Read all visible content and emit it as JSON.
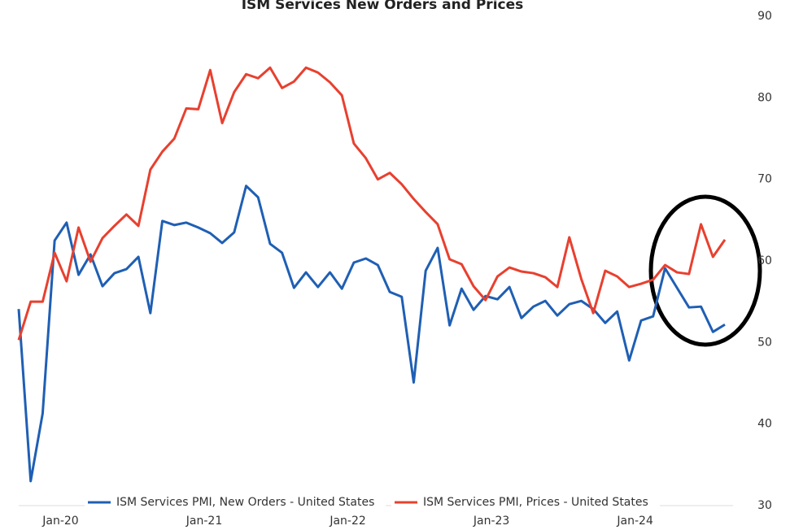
{
  "chart_data": {
    "type": "line",
    "title": "ISM Services New Orders and Prices",
    "categories": [
      null,
      null,
      null,
      "Jan-20",
      null,
      null,
      null,
      null,
      null,
      null,
      null,
      null,
      null,
      null,
      null,
      "Jan-21",
      null,
      null,
      null,
      null,
      null,
      null,
      null,
      null,
      null,
      null,
      null,
      "Jan-22",
      null,
      null,
      null,
      null,
      null,
      null,
      null,
      null,
      null,
      null,
      null,
      "Jan-23",
      null,
      null,
      null,
      null,
      null,
      null,
      null,
      null,
      null,
      null,
      null,
      "Jan-24",
      null,
      null,
      null,
      null,
      null,
      null,
      null,
      null
    ],
    "series": [
      {
        "name": "ISM Services PMI, New Orders - United States",
        "color": "#1f5fb4",
        "values": [
          54.1,
          33,
          41.3,
          62.5,
          64.7,
          58.3,
          60.8,
          56.9,
          58.5,
          59,
          60.5,
          53.6,
          64.9,
          64.4,
          64.7,
          64.1,
          63.4,
          62.2,
          63.5,
          69.2,
          67.8,
          62.1,
          61,
          56.7,
          58.6,
          56.8,
          58.6,
          56.6,
          59.8,
          60.3,
          59.5,
          56.2,
          55.6,
          45.1,
          58.8,
          61.6,
          52.1,
          56.6,
          54,
          55.7,
          55.3,
          56.8,
          53,
          54.4,
          55.1,
          53.3,
          54.7,
          55.1,
          54.1,
          52.4,
          53.8,
          47.8,
          52.7,
          53.2,
          59.1,
          56.7,
          54.3,
          54.4,
          51.3,
          52.2
        ]
      },
      {
        "name": "ISM Services PMI, Prices - United States",
        "color": "#e8402f",
        "values": [
          50.3,
          55,
          55,
          61,
          57.5,
          64.1,
          59.9,
          62.8,
          64.3,
          65.7,
          64.3,
          71.2,
          73.4,
          75,
          78.7,
          78.6,
          83.4,
          76.9,
          80.7,
          82.9,
          82.4,
          83.7,
          81.2,
          82,
          83.7,
          83.1,
          81.9,
          80.3,
          74.4,
          72.6,
          70,
          70.8,
          69.4,
          67.6,
          66,
          64.5,
          60.2,
          59.6,
          56.9,
          55.2,
          58.1,
          59.2,
          58.7,
          58.5,
          58,
          56.8,
          62.9,
          57.8,
          53.6,
          58.8,
          58.1,
          56.8,
          57.2,
          57.7,
          59.5,
          58.6,
          58.4,
          64.5,
          60.5,
          62.6
        ]
      }
    ],
    "ylim": [
      30,
      90
    ],
    "yticks": [
      30,
      40,
      50,
      60,
      70,
      80,
      90
    ],
    "legend": "bottom"
  }
}
